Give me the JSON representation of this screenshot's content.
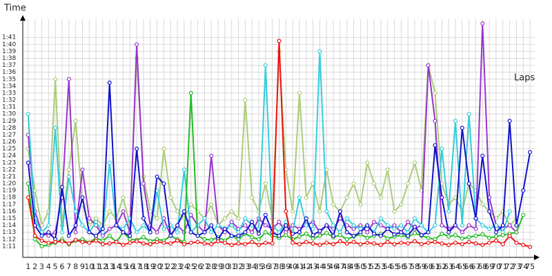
{
  "chart_data": {
    "type": "line",
    "y_label": "Time",
    "x_label": "Laps",
    "x": [
      1,
      2,
      3,
      4,
      5,
      6,
      7,
      8,
      9,
      10,
      11,
      12,
      13,
      14,
      15,
      16,
      17,
      18,
      19,
      20,
      21,
      22,
      23,
      24,
      25,
      26,
      27,
      28,
      29,
      30,
      31,
      32,
      33,
      34,
      35,
      36,
      37,
      38,
      39,
      40,
      41,
      42,
      43,
      44,
      45,
      46,
      47,
      48,
      49,
      50,
      51,
      52,
      53,
      54,
      55,
      56,
      57,
      58,
      59,
      60,
      61,
      62,
      63,
      64,
      65,
      66,
      67,
      68,
      69,
      70,
      71,
      72,
      73,
      74,
      75
    ],
    "xlim": [
      0.2,
      75.7
    ],
    "xticks": [
      1,
      2,
      3,
      4,
      5,
      6,
      7,
      8,
      9,
      10,
      11,
      12,
      13,
      14,
      15,
      16,
      17,
      18,
      19,
      20,
      21,
      22,
      23,
      24,
      25,
      26,
      27,
      28,
      29,
      30,
      31,
      32,
      33,
      34,
      35,
      36,
      37,
      38,
      39,
      40,
      41,
      42,
      43,
      44,
      45,
      46,
      47,
      48,
      49,
      50,
      51,
      52,
      53,
      54,
      55,
      56,
      57,
      58,
      59,
      60,
      61,
      62,
      63,
      64,
      65,
      66,
      67,
      68,
      69,
      70,
      71,
      72,
      73,
      74,
      75
    ],
    "ylim": [
      69.4,
      103.6
    ],
    "yticks": [
      {
        "value": 71,
        "label": "1:11"
      },
      {
        "value": 72,
        "label": "1:12"
      },
      {
        "value": 73,
        "label": "1:13"
      },
      {
        "value": 74,
        "label": "1:14"
      },
      {
        "value": 75,
        "label": "1:15"
      },
      {
        "value": 76,
        "label": "1:16"
      },
      {
        "value": 77,
        "label": "1:17"
      },
      {
        "value": 78,
        "label": "1:18"
      },
      {
        "value": 79,
        "label": "1:19"
      },
      {
        "value": 80,
        "label": "1:20"
      },
      {
        "value": 81,
        "label": "1:21"
      },
      {
        "value": 82,
        "label": "1:22"
      },
      {
        "value": 83,
        "label": "1:23"
      },
      {
        "value": 84,
        "label": "1:24"
      },
      {
        "value": 85,
        "label": "1:25"
      },
      {
        "value": 86,
        "label": "1:26"
      },
      {
        "value": 87,
        "label": "1:27"
      },
      {
        "value": 88,
        "label": "1:28"
      },
      {
        "value": 89,
        "label": "1:29"
      },
      {
        "value": 90,
        "label": "1:30"
      },
      {
        "value": 91,
        "label": "1:31"
      },
      {
        "value": 92,
        "label": "1:32"
      },
      {
        "value": 93,
        "label": "1:33"
      },
      {
        "value": 94,
        "label": "1:34"
      },
      {
        "value": 95,
        "label": "1:35"
      },
      {
        "value": 96,
        "label": "1:36"
      },
      {
        "value": 97,
        "label": "1:37"
      },
      {
        "value": 98,
        "label": "1:38"
      },
      {
        "value": 99,
        "label": "1:39"
      },
      {
        "value": 100,
        "label": "1:40"
      },
      {
        "value": 101,
        "label": "1:41"
      }
    ],
    "grid": true,
    "series": [
      {
        "color": "#aacc77",
        "values": [
          85,
          79,
          74,
          76,
          95,
          74,
          82,
          89,
          77,
          74,
          75,
          74,
          76,
          75,
          78,
          74,
          98,
          81,
          76,
          75,
          85,
          78,
          76,
          75,
          77,
          76,
          75,
          77,
          74,
          75,
          76,
          75,
          92,
          78,
          76,
          80,
          75,
          99,
          82,
          76,
          93,
          78,
          80,
          76,
          82,
          77,
          76,
          78,
          80,
          77,
          83,
          80,
          78,
          82,
          76,
          77,
          80,
          83,
          79,
          97,
          93,
          80,
          77,
          78,
          76,
          80,
          79,
          77,
          76,
          75,
          76,
          74,
          75,
          null,
          null
        ]
      },
      {
        "color": "#9933cc",
        "values": [
          87,
          76,
          73,
          72.5,
          73,
          78,
          95,
          73,
          82,
          75,
          74,
          72.5,
          73.5,
          74,
          76,
          73,
          100,
          80,
          74,
          73,
          75,
          72.5,
          74,
          73,
          75.5,
          74,
          73,
          84,
          74,
          73,
          74.5,
          73.5,
          74,
          73,
          75,
          74,
          73.5,
          74.5,
          73,
          74,
          73.5,
          74,
          74.5,
          73,
          74,
          73.5,
          75,
          74,
          73.5,
          74,
          73,
          74.5,
          74,
          73.5,
          74,
          73,
          74.5,
          73.5,
          74,
          97,
          89,
          74,
          73.5,
          74,
          73,
          74,
          73.5,
          103,
          78,
          74,
          73.5,
          74,
          73,
          null,
          null
        ]
      },
      {
        "color": "#33ccdd",
        "values": [
          90,
          75,
          73,
          74,
          88,
          73,
          81,
          76,
          74,
          73,
          74.5,
          73,
          83,
          74,
          73.5,
          75,
          73,
          74,
          73,
          79,
          73.5,
          74,
          73,
          82,
          73,
          74,
          75,
          73,
          74,
          73.5,
          74,
          73,
          75,
          74,
          73.5,
          97,
          74,
          73,
          74.5,
          73,
          78,
          74,
          73.5,
          99,
          76,
          74,
          73,
          75,
          74,
          73.5,
          74,
          73,
          75,
          74,
          73.5,
          74,
          73,
          75,
          74,
          73,
          74,
          85,
          76,
          89,
          74,
          90,
          75,
          74,
          73.5,
          74,
          73,
          76,
          null,
          null,
          null
        ]
      },
      {
        "color": "#22bb22",
        "values": [
          80,
          72,
          71,
          71.2,
          71.5,
          72,
          71.3,
          71.8,
          72,
          71.5,
          72.2,
          71.8,
          72.5,
          71.6,
          73,
          72,
          71.9,
          72.3,
          71.7,
          72,
          71.8,
          72.5,
          72,
          71.6,
          93,
          72.5,
          72,
          71.9,
          72.3,
          71.8,
          72.5,
          72,
          72.8,
          72.3,
          72,
          73,
          72.5,
          72.2,
          72.6,
          72,
          72.4,
          72.8,
          72.1,
          72.5,
          72.9,
          72.3,
          72.6,
          72,
          72.4,
          72.7,
          72.2,
          72.5,
          72.8,
          72.1,
          72.4,
          72.6,
          72.3,
          72.9,
          72.5,
          72.2,
          72,
          72.8,
          72.4,
          72.6,
          72.1,
          72.3,
          72.5,
          72.7,
          72.2,
          72.4,
          72.6,
          72.8,
          73,
          75.5,
          null
        ]
      },
      {
        "color": "#1111cc",
        "values": [
          83,
          74,
          72.5,
          73,
          72,
          79.5,
          72.5,
          74,
          78,
          73,
          72.5,
          73.5,
          94.5,
          74,
          73,
          72.5,
          85,
          75,
          73,
          81,
          80,
          72.5,
          74,
          76,
          73,
          72.5,
          73,
          74,
          72,
          73.5,
          72.5,
          72.5,
          73,
          74.5,
          72.8,
          75.5,
          73,
          72.5,
          74,
          72.8,
          73,
          75,
          72.6,
          73.2,
          74,
          72.5,
          76,
          73,
          72.5,
          73,
          74,
          72.8,
          72.5,
          73.5,
          72.7,
          73,
          72.5,
          73.8,
          72.6,
          73,
          85.5,
          78,
          73,
          74,
          88,
          80,
          75,
          84,
          76,
          73,
          74,
          89,
          74,
          79,
          84.5
        ]
      },
      {
        "color": "#ee1111",
        "values": [
          78,
          72.5,
          71.8,
          71.5,
          71.6,
          71.7,
          71.4,
          71.9,
          71.6,
          71.5,
          71.8,
          71.3,
          71.4,
          71.6,
          71.2,
          71.5,
          71.7,
          71.4,
          71.3,
          71.6,
          71.5,
          71.4,
          71.8,
          71.3,
          71.5,
          71.6,
          71.4,
          71.3,
          71.7,
          71.5,
          71.2,
          71.4,
          71.3,
          71.6,
          71.2,
          71.5,
          71.4,
          100.5,
          76,
          71.5,
          71.3,
          71.6,
          71.4,
          71.2,
          71.5,
          71.3,
          71.7,
          71.4,
          71.6,
          71.3,
          71.5,
          71.4,
          71.2,
          71.6,
          71.3,
          71.5,
          71.4,
          71.7,
          71.3,
          71.5,
          71.6,
          71.4,
          71.2,
          71.5,
          71.3,
          71.6,
          71.4,
          71.2,
          71.5,
          71.8,
          71.3,
          72.5,
          71.5,
          71.2,
          70.9
        ]
      }
    ]
  }
}
